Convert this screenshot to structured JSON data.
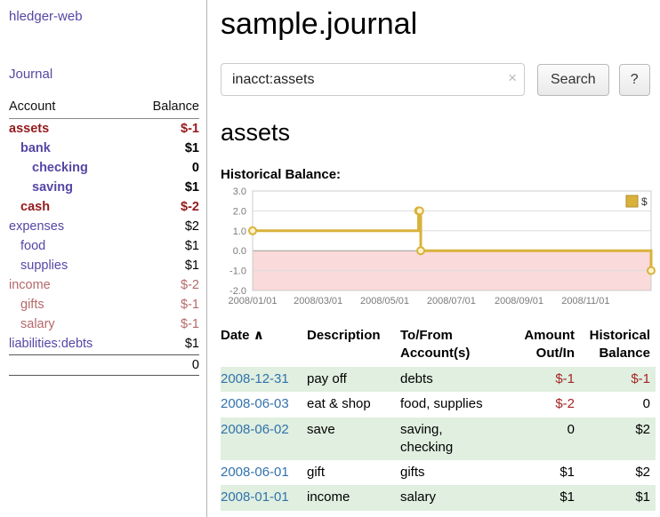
{
  "colors": {
    "link_purple": "#5746a5",
    "neg_dark": "#941a1d",
    "neg_rose": "#b5686b",
    "date_blue": "#3272ad",
    "row_green": "#e0efdf",
    "chart_gold": "#d9b23a",
    "chart_gold_fill": "#fdf4cf",
    "chart_neg_bg": "#fadada",
    "amount_neg": "#a52526"
  },
  "sidebar": {
    "app_title": "hledger-web",
    "nav": [
      {
        "label": "Journal"
      }
    ],
    "accounts": {
      "header": {
        "account": "Account",
        "balance": "Balance"
      },
      "rows": [
        {
          "account": "assets",
          "depth": 0,
          "balance": "$-1",
          "bold": true
        },
        {
          "account": "bank",
          "depth": 1,
          "balance": "$1",
          "bold": true
        },
        {
          "account": "checking",
          "depth": 2,
          "balance": "0",
          "bold": true
        },
        {
          "account": "saving",
          "depth": 2,
          "balance": "$1",
          "bold": true
        },
        {
          "account": "cash",
          "depth": 1,
          "balance": "$-2",
          "bold": true
        },
        {
          "account": "expenses",
          "depth": 0,
          "balance": "$2",
          "bold": false
        },
        {
          "account": "food",
          "depth": 1,
          "balance": "$1",
          "bold": false
        },
        {
          "account": "supplies",
          "depth": 1,
          "balance": "$1",
          "bold": false
        },
        {
          "account": "income",
          "depth": 0,
          "balance": "$-2",
          "bold": false
        },
        {
          "account": "gifts",
          "depth": 1,
          "balance": "$-1",
          "bold": false
        },
        {
          "account": "salary",
          "depth": 1,
          "balance": "$-1",
          "bold": false
        },
        {
          "account": "liabilities:debts",
          "depth": 0,
          "balance": "$1",
          "bold": false
        }
      ],
      "total": "0"
    }
  },
  "main": {
    "title": "sample.journal",
    "search": {
      "value": "inacct:assets",
      "clear_glyph": "×",
      "button_label": "Search",
      "help_label": "?"
    },
    "account_heading": "assets",
    "section_label": "Historical Balance:"
  },
  "chart_data": {
    "type": "line",
    "step": true,
    "title": "Historical Balance",
    "legend_label": "$",
    "legend_position": "top-right",
    "ylim": [
      -2,
      3
    ],
    "yticks": [
      "3.0",
      "2.0",
      "1.0",
      "0.0",
      "-1.0",
      "-2.0"
    ],
    "ytick_values": [
      3,
      2,
      1,
      0,
      -1,
      -2
    ],
    "x_range": [
      "2008-01-01",
      "2008-12-31"
    ],
    "xticks": [
      {
        "date": "2008-01-01",
        "label": "2008/01/01"
      },
      {
        "date": "2008-03-01",
        "label": "2008/03/01"
      },
      {
        "date": "2008-05-01",
        "label": "2008/05/01"
      },
      {
        "date": "2008-07-01",
        "label": "2008/07/01"
      },
      {
        "date": "2008-09-01",
        "label": "2008/09/01"
      },
      {
        "date": "2008-11-01",
        "label": "2008/11/01"
      }
    ],
    "series": [
      {
        "name": "$",
        "points": [
          {
            "date": "2008-01-01",
            "value": 1
          },
          {
            "date": "2008-06-01",
            "value": 2
          },
          {
            "date": "2008-06-02",
            "value": 2
          },
          {
            "date": "2008-06-03",
            "value": 0
          },
          {
            "date": "2008-12-31",
            "value": -1
          }
        ]
      }
    ]
  },
  "register": {
    "headers": {
      "date": "Date",
      "sort_glyph": "∧",
      "description": "Description",
      "tofrom": "To/From\nAccount(s)",
      "amount": "Amount\nOut/In",
      "balance": "Historical\nBalance"
    },
    "rows": [
      {
        "date": "2008-12-31",
        "description": "pay off",
        "tofrom": "debts",
        "amount": "$-1",
        "balance": "$-1",
        "shaded": true
      },
      {
        "date": "2008-06-03",
        "description": "eat & shop",
        "tofrom": "food, supplies",
        "amount": "$-2",
        "balance": "0",
        "shaded": false
      },
      {
        "date": "2008-06-02",
        "description": "save",
        "tofrom": "saving,\nchecking",
        "amount": "0",
        "balance": "$2",
        "shaded": true
      },
      {
        "date": "2008-06-01",
        "description": "gift",
        "tofrom": "gifts",
        "amount": "$1",
        "balance": "$2",
        "shaded": false
      },
      {
        "date": "2008-01-01",
        "description": "income",
        "tofrom": "salary",
        "amount": "$1",
        "balance": "$1",
        "shaded": true
      }
    ]
  }
}
